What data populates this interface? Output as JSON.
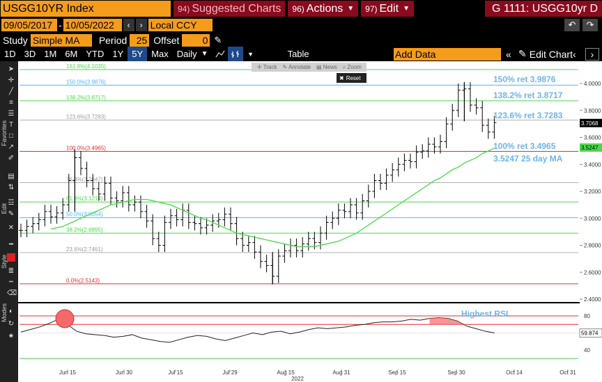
{
  "header": {
    "ticker": "USGG10YR Index",
    "suggested_num": "94)",
    "suggested_label": "Suggested Charts",
    "actions_num": "96)",
    "actions_label": "Actions",
    "edit_num": "97)",
    "edit_label": "Edit",
    "gtitle": "G 1111: USGG10yr D"
  },
  "dates": {
    "start": "09/05/2017",
    "end": "10/05/2022",
    "currency": "Local CCY"
  },
  "study": {
    "label": "Study",
    "value": "Simple MA",
    "period_label": "Period",
    "period_value": "25",
    "offset_label": "Offset",
    "offset_value": "0"
  },
  "periods": [
    "1D",
    "3D",
    "1M",
    "6M",
    "YTD",
    "1Y",
    "5Y",
    "Max"
  ],
  "active_period": "5Y",
  "frequency": "Daily",
  "table_label": "Table",
  "add_data_placeholder": "Add Data",
  "edit_chart_label": "Edit Chart",
  "side_labels": {
    "favorites": "Favorites",
    "edit": "Edit",
    "style": "Style",
    "modes": "Modes"
  },
  "float_toolbar": {
    "track": "Track",
    "annotate": "Annotate",
    "news": "News",
    "zoom": "Zoom",
    "reset": "Reset"
  },
  "colors": {
    "price": "#000000",
    "ma": "#4cd84c",
    "fib_green": "#4cd84c",
    "fib_cyan": "#4ab6ff",
    "fib_red": "#e22d2d",
    "fib_gray": "#b0b0b0",
    "annotation": "#6fb4e8",
    "rsi_highlight": "#f26a6a"
  },
  "chart_data": {
    "type": "line",
    "title": "",
    "xlabel": "2022",
    "ylabel": "",
    "y_axis_ticks": [
      "4.0000",
      "3.8000",
      "3.6000",
      "3.4000",
      "3.2000",
      "3.0000",
      "2.8000",
      "2.6000",
      "2.4000"
    ],
    "ylim": [
      2.37,
      4.12
    ],
    "x_ticks": [
      "Jun 15",
      "Jun 30",
      "Jul 15",
      "Jul 29",
      "Aug 15",
      "Aug 31",
      "Sep 15",
      "Sep 30",
      "Oct 14",
      "Oct 31"
    ],
    "last_price": "3.7068",
    "last_ma": "3.5247",
    "fib_levels": [
      {
        "label": "161.8%(4.1035)",
        "value": 4.1035,
        "color": "green"
      },
      {
        "label": "150.0%(3.9876)",
        "value": 3.9876,
        "color": "cyan"
      },
      {
        "label": "138.2%(3.8717)",
        "value": 3.8717,
        "color": "green"
      },
      {
        "label": "123.6%(3.7283)",
        "value": 3.7283,
        "color": "gray"
      },
      {
        "label": "100.0%(3.4965)",
        "value": 3.4965,
        "color": "red"
      },
      {
        "label": "76.4%(3.2647)",
        "value": 3.2647,
        "color": "gray"
      },
      {
        "label": "61.8%(3.1214)",
        "value": 3.1214,
        "color": "green"
      },
      {
        "label": "50.0%(3.0054)",
        "value": 3.0054,
        "color": "cyan"
      },
      {
        "label": "38.2%(2.8895)",
        "value": 2.8895,
        "color": "green"
      },
      {
        "label": "23.6%(2.7461)",
        "value": 2.7461,
        "color": "gray"
      },
      {
        "label": "0.0%(2.5143)",
        "value": 2.5143,
        "color": "red"
      }
    ],
    "annotations": [
      "150% ret 3.9876",
      "138.2% ret 3.8717",
      "123.6% ret 3.7283",
      "100% ret 3.4965",
      "3.5247 25 day MA"
    ],
    "series": [
      {
        "name": "",
        "values": [
          2.91,
          2.94,
          2.96,
          2.99,
          3.05,
          3.01,
          3.04,
          3.1,
          3.28,
          3.45,
          3.37,
          3.28,
          3.22,
          3.18,
          3.26,
          3.15,
          3.13,
          3.19,
          3.1,
          3.12,
          3.05,
          2.98,
          2.85,
          2.8,
          2.97,
          3.02,
          2.99,
          3.06,
          2.97,
          2.96,
          2.93,
          2.95,
          2.98,
          2.99,
          3.03,
          2.96,
          2.85,
          2.8,
          2.82,
          2.75,
          2.68,
          2.65,
          2.57,
          2.72,
          2.76,
          2.8,
          2.76,
          2.81,
          2.85,
          2.82,
          2.89,
          2.97,
          3.0,
          3.06,
          3.05,
          3.1,
          3.04,
          3.13,
          3.2,
          3.28,
          3.26,
          3.32,
          3.36,
          3.4,
          3.43,
          3.42,
          3.49,
          3.5,
          3.55,
          3.53,
          3.57,
          3.7,
          3.8,
          3.95,
          3.96,
          3.84,
          3.82,
          3.69,
          3.64,
          3.71
        ]
      },
      {
        "name": "",
        "values": [
          2.92,
          2.93,
          2.94,
          2.96,
          2.98,
          3.0,
          3.02,
          3.04,
          3.06,
          3.08,
          3.1,
          3.11,
          3.12,
          3.13,
          3.14,
          3.14,
          3.14,
          3.13,
          3.12,
          3.11,
          3.1,
          3.08,
          3.06,
          3.04,
          3.02,
          3.0,
          2.99,
          2.97,
          2.95,
          2.93,
          2.91,
          2.89,
          2.88,
          2.87,
          2.86,
          2.85,
          2.84,
          2.83,
          2.82,
          2.81,
          2.8,
          2.79,
          2.79,
          2.79,
          2.79,
          2.8,
          2.81,
          2.82,
          2.83,
          2.85,
          2.87,
          2.89,
          2.92,
          2.95,
          2.98,
          3.01,
          3.04,
          3.07,
          3.1,
          3.13,
          3.16,
          3.19,
          3.22,
          3.25,
          3.28,
          3.3,
          3.33,
          3.36,
          3.38,
          3.41,
          3.43,
          3.45,
          3.48,
          3.5,
          3.52
        ]
      }
    ],
    "rsi": {
      "label": "Highest RSI",
      "ticks": [
        "80",
        "60",
        "40"
      ],
      "ylim": [
        28,
        94
      ],
      "last_value": "59.874",
      "bands": [
        80,
        70,
        30
      ],
      "values": [
        61,
        64,
        67,
        71,
        76,
        70,
        62,
        59,
        58,
        57,
        55,
        56,
        58,
        54,
        52,
        50,
        49,
        52,
        55,
        57,
        56,
        53,
        51,
        54,
        57,
        60,
        58,
        61,
        62,
        59,
        61,
        64,
        66,
        65,
        66,
        67,
        69,
        70,
        72,
        73,
        73,
        74,
        76,
        75,
        77,
        78,
        77,
        74,
        68,
        65,
        62,
        60
      ],
      "x_first_index": 0,
      "x_step_equals_price_index": 2
    }
  }
}
